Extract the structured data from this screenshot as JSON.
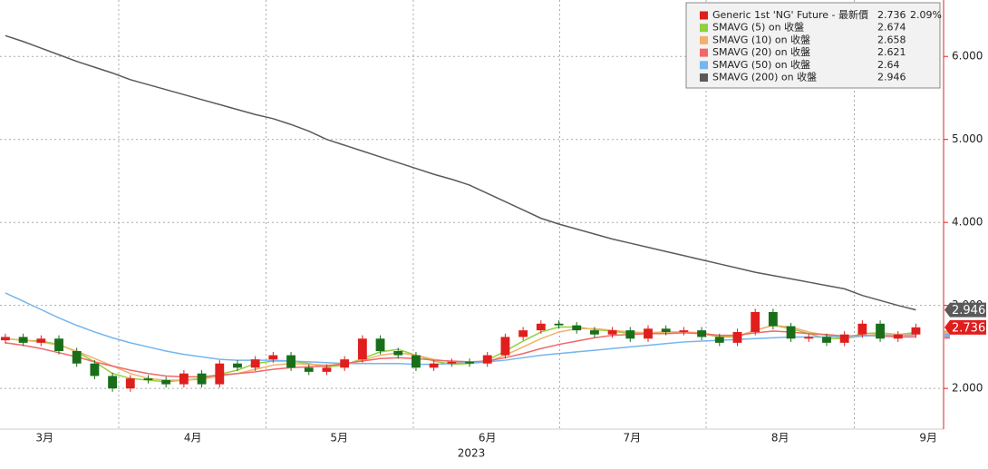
{
  "chart_data": {
    "type": "candlestick",
    "name": "Generic 1st 'NG' Future - 最新價",
    "change": "2.09%",
    "up_color": "#e01e1e",
    "down_color": "#1a6e1a",
    "x": [
      0,
      1,
      2,
      3,
      4,
      5,
      6,
      7,
      8,
      9,
      10,
      11,
      12,
      13,
      14,
      15,
      16,
      17,
      18,
      19,
      20,
      21,
      22,
      23,
      24,
      25,
      26,
      27,
      28,
      29,
      30,
      31,
      32,
      33,
      34,
      35,
      36,
      37,
      38,
      39,
      40,
      41,
      42,
      43,
      44,
      45,
      46,
      47,
      48,
      49,
      50,
      51
    ],
    "open": [
      2.58,
      2.62,
      2.55,
      2.6,
      2.45,
      2.3,
      2.15,
      2.0,
      2.12,
      2.1,
      2.05,
      2.18,
      2.05,
      2.3,
      2.25,
      2.35,
      2.4,
      2.25,
      2.2,
      2.25,
      2.35,
      2.6,
      2.45,
      2.4,
      2.25,
      2.3,
      2.32,
      2.3,
      2.4,
      2.62,
      2.7,
      2.78,
      2.76,
      2.7,
      2.65,
      2.7,
      2.6,
      2.72,
      2.68,
      2.7,
      2.62,
      2.55,
      2.68,
      2.92,
      2.75,
      2.6,
      2.62,
      2.55,
      2.65,
      2.78,
      2.6,
      2.65
    ],
    "high": [
      2.66,
      2.66,
      2.64,
      2.64,
      2.49,
      2.34,
      2.19,
      2.16,
      2.16,
      2.14,
      2.22,
      2.22,
      2.34,
      2.34,
      2.39,
      2.44,
      2.44,
      2.29,
      2.29,
      2.39,
      2.64,
      2.64,
      2.49,
      2.44,
      2.34,
      2.36,
      2.36,
      2.44,
      2.66,
      2.74,
      2.82,
      2.82,
      2.8,
      2.74,
      2.74,
      2.74,
      2.76,
      2.76,
      2.74,
      2.74,
      2.66,
      2.72,
      2.96,
      2.96,
      2.79,
      2.66,
      2.66,
      2.69,
      2.82,
      2.82,
      2.69,
      2.78
    ],
    "low": [
      2.54,
      2.51,
      2.51,
      2.41,
      2.26,
      2.11,
      1.96,
      1.96,
      2.06,
      2.01,
      2.01,
      2.01,
      2.01,
      2.21,
      2.21,
      2.31,
      2.21,
      2.16,
      2.16,
      2.21,
      2.31,
      2.41,
      2.36,
      2.21,
      2.21,
      2.26,
      2.26,
      2.26,
      2.36,
      2.58,
      2.66,
      2.72,
      2.66,
      2.61,
      2.61,
      2.56,
      2.56,
      2.64,
      2.64,
      2.58,
      2.51,
      2.51,
      2.64,
      2.71,
      2.56,
      2.56,
      2.51,
      2.51,
      2.61,
      2.56,
      2.56,
      2.61
    ],
    "close": [
      2.62,
      2.55,
      2.6,
      2.45,
      2.3,
      2.15,
      2.0,
      2.12,
      2.1,
      2.05,
      2.18,
      2.05,
      2.3,
      2.25,
      2.35,
      2.4,
      2.25,
      2.2,
      2.25,
      2.35,
      2.6,
      2.45,
      2.4,
      2.25,
      2.3,
      2.32,
      2.3,
      2.4,
      2.62,
      2.7,
      2.78,
      2.76,
      2.7,
      2.65,
      2.7,
      2.6,
      2.72,
      2.68,
      2.7,
      2.62,
      2.55,
      2.68,
      2.92,
      2.75,
      2.6,
      2.62,
      2.55,
      2.65,
      2.78,
      2.6,
      2.65,
      2.736
    ],
    "series": [
      {
        "name": "SMAVG (5)  on 收盤",
        "color": "#8fd03c",
        "values": [
          2.6,
          2.58,
          2.57,
          2.53,
          2.44,
          2.32,
          2.18,
          2.12,
          2.1,
          2.08,
          2.1,
          2.12,
          2.17,
          2.22,
          2.3,
          2.33,
          2.33,
          2.3,
          2.26,
          2.28,
          2.36,
          2.44,
          2.47,
          2.4,
          2.33,
          2.29,
          2.3,
          2.34,
          2.45,
          2.57,
          2.68,
          2.74,
          2.74,
          2.71,
          2.69,
          2.66,
          2.67,
          2.68,
          2.68,
          2.66,
          2.62,
          2.62,
          2.7,
          2.76,
          2.72,
          2.66,
          2.6,
          2.6,
          2.66,
          2.67,
          2.65,
          2.674
        ]
      },
      {
        "name": "SMAVG (10)  on 收盤",
        "color": "#f3b06a",
        "values": [
          2.6,
          2.58,
          2.56,
          2.52,
          2.45,
          2.36,
          2.27,
          2.18,
          2.12,
          2.1,
          2.1,
          2.11,
          2.15,
          2.18,
          2.23,
          2.28,
          2.3,
          2.29,
          2.28,
          2.29,
          2.34,
          2.4,
          2.43,
          2.4,
          2.35,
          2.32,
          2.3,
          2.32,
          2.4,
          2.5,
          2.6,
          2.68,
          2.72,
          2.72,
          2.7,
          2.68,
          2.67,
          2.68,
          2.68,
          2.67,
          2.63,
          2.63,
          2.7,
          2.76,
          2.74,
          2.68,
          2.64,
          2.6,
          2.63,
          2.66,
          2.65,
          2.658
        ]
      },
      {
        "name": "SMAVG (20)  on 收盤",
        "color": "#f06868",
        "values": [
          2.55,
          2.52,
          2.48,
          2.43,
          2.38,
          2.32,
          2.27,
          2.22,
          2.18,
          2.15,
          2.14,
          2.14,
          2.16,
          2.18,
          2.2,
          2.23,
          2.25,
          2.26,
          2.27,
          2.3,
          2.33,
          2.36,
          2.37,
          2.36,
          2.34,
          2.33,
          2.32,
          2.33,
          2.37,
          2.42,
          2.48,
          2.53,
          2.57,
          2.61,
          2.64,
          2.65,
          2.66,
          2.66,
          2.67,
          2.66,
          2.64,
          2.64,
          2.67,
          2.69,
          2.68,
          2.66,
          2.65,
          2.63,
          2.64,
          2.63,
          2.62,
          2.621
        ]
      },
      {
        "name": "SMAVG (50)  on 收盤",
        "color": "#74b6ee",
        "values": [
          3.15,
          3.05,
          2.95,
          2.85,
          2.76,
          2.68,
          2.61,
          2.55,
          2.5,
          2.45,
          2.41,
          2.38,
          2.35,
          2.34,
          2.34,
          2.34,
          2.33,
          2.32,
          2.31,
          2.3,
          2.3,
          2.3,
          2.3,
          2.29,
          2.29,
          2.3,
          2.31,
          2.32,
          2.34,
          2.37,
          2.4,
          2.42,
          2.44,
          2.46,
          2.48,
          2.5,
          2.52,
          2.54,
          2.56,
          2.57,
          2.58,
          2.59,
          2.6,
          2.61,
          2.62,
          2.62,
          2.62,
          2.63,
          2.63,
          2.64,
          2.64,
          2.64
        ]
      },
      {
        "name": "SMAVG (200)  on 收盤",
        "color": "#5a5a5a",
        "values": [
          6.25,
          6.18,
          6.1,
          6.02,
          5.94,
          5.87,
          5.8,
          5.72,
          5.66,
          5.6,
          5.54,
          5.48,
          5.42,
          5.36,
          5.3,
          5.25,
          5.18,
          5.1,
          5.0,
          4.93,
          4.86,
          4.79,
          4.72,
          4.65,
          4.58,
          4.52,
          4.45,
          4.35,
          4.25,
          4.15,
          4.05,
          3.98,
          3.92,
          3.86,
          3.8,
          3.75,
          3.7,
          3.65,
          3.6,
          3.55,
          3.5,
          3.45,
          3.4,
          3.36,
          3.32,
          3.28,
          3.24,
          3.2,
          3.12,
          3.06,
          3.0,
          2.946
        ]
      }
    ],
    "xlim": [
      -0.3,
      52.5
    ],
    "xticks": [
      {
        "value": 2.2,
        "label": "3月"
      },
      {
        "value": 10.5,
        "label": "4月"
      },
      {
        "value": 18.7,
        "label": "5月"
      },
      {
        "value": 27,
        "label": "6月"
      },
      {
        "value": 35.1,
        "label": "7月"
      },
      {
        "value": 43.4,
        "label": "8月"
      },
      {
        "value": 51.7,
        "label": "9月"
      }
    ],
    "x_label": "2023",
    "ylim": [
      1.51,
      6.68
    ],
    "yticks": [
      {
        "value": 2,
        "label": "2.000"
      },
      {
        "value": 3,
        "label": "3.000"
      },
      {
        "value": 4,
        "label": "4.000"
      },
      {
        "value": 5,
        "label": "5.000"
      },
      {
        "value": 6,
        "label": "6.000"
      }
    ],
    "grid": true,
    "legend_position": "top-right"
  }
}
